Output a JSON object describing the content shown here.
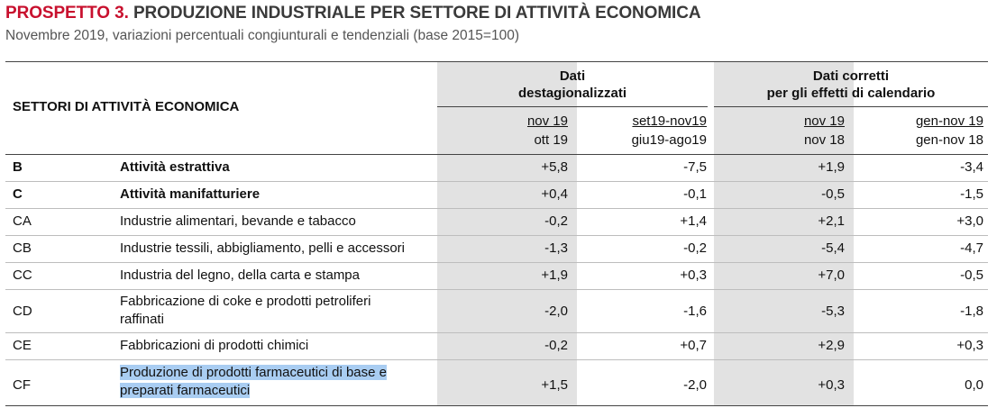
{
  "title": {
    "label": "PROSPETTO 3.",
    "text": "PRODUZIONE INDUSTRIALE PER SETTORE DI ATTIVITÀ ECONOMICA"
  },
  "subtitle": "Novembre 2019, variazioni percentuali congiunturali e tendenziali (base 2015=100)",
  "header": {
    "sector_col": "SETTORI DI ATTIVITÀ ECONOMICA",
    "group1": {
      "line1": "Dati",
      "line2": "destagionalizzati"
    },
    "group2": {
      "line1": "Dati corretti",
      "line2": "per gli effetti di calendario"
    },
    "cols": [
      {
        "top": "nov 19",
        "bottom": "ott 19"
      },
      {
        "top": "set19-nov19",
        "bottom": "giu19-ago19"
      },
      {
        "top": "nov 19",
        "bottom": "nov 18"
      },
      {
        "top": "gen-nov 19",
        "bottom": "gen-nov 18"
      }
    ]
  },
  "rows": [
    {
      "code": "B",
      "name": "Attività estrattiva",
      "values": [
        "+5,8",
        "-7,5",
        "+1,9",
        "-3,4"
      ]
    },
    {
      "code": "C",
      "name": "Attività manifatturiere",
      "values": [
        "+0,4",
        "-0,1",
        "-0,5",
        "-1,5"
      ]
    },
    {
      "code": "CA",
      "name": "Industrie alimentari, bevande e tabacco",
      "values": [
        "-0,2",
        "+1,4",
        "+2,1",
        "+3,0"
      ]
    },
    {
      "code": "CB",
      "name": "Industrie tessili, abbigliamento, pelli e accessori",
      "values": [
        "-1,3",
        "-0,2",
        "-5,4",
        "-4,7"
      ]
    },
    {
      "code": "CC",
      "name": "Industria del legno, della carta e stampa",
      "values": [
        "+1,9",
        "+0,3",
        "+7,0",
        "-0,5"
      ]
    },
    {
      "code": "CD",
      "name_line1": "Fabbricazione di coke e prodotti petroliferi",
      "name_line2": "raffinati",
      "values": [
        "-2,0",
        "-1,6",
        "-5,3",
        "-1,8"
      ]
    },
    {
      "code": "CE",
      "name": "Fabbricazioni di prodotti chimici",
      "values": [
        "-0,2",
        "+0,7",
        "+2,9",
        "+0,3"
      ]
    },
    {
      "code": "CF",
      "name_line1": "Produzione di prodotti farmaceutici di base e",
      "name_line2": "preparati farmaceutici",
      "values": [
        "+1,5",
        "-2,0",
        "+0,3",
        "0,0"
      ]
    }
  ],
  "colors": {
    "accent": "#c8102e",
    "shade": "#e2e2e2",
    "selection": "#a9cdf2"
  }
}
